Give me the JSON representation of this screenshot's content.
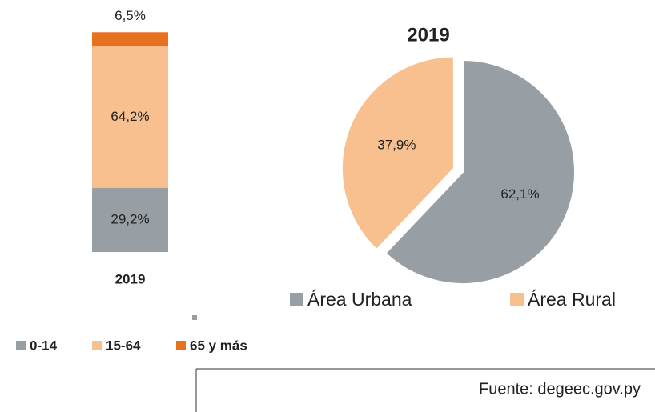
{
  "chart_data": [
    {
      "type": "stacked_bar",
      "categories": [
        "2019"
      ],
      "series": [
        {
          "name": "0-14",
          "color": "#979fa5",
          "values": [
            29.2
          ],
          "value_labels": [
            "29,2%"
          ]
        },
        {
          "name": "15-64",
          "color": "#f8bf8f",
          "values": [
            64.2
          ],
          "value_labels": [
            "64,2%"
          ]
        },
        {
          "name": "65 y más",
          "color": "#e8711f",
          "values": [
            6.5
          ],
          "value_labels": [
            "6,5%"
          ]
        }
      ]
    },
    {
      "type": "pie",
      "title": "2019",
      "categories": [
        "Área Urbana",
        "Área Rural"
      ],
      "values": [
        62.1,
        37.9
      ],
      "value_labels": [
        "62,1%",
        "37,9%"
      ],
      "colors": [
        "#979fa5",
        "#f8bf8f"
      ]
    }
  ],
  "source": "Fuente: degeec.gov.py"
}
